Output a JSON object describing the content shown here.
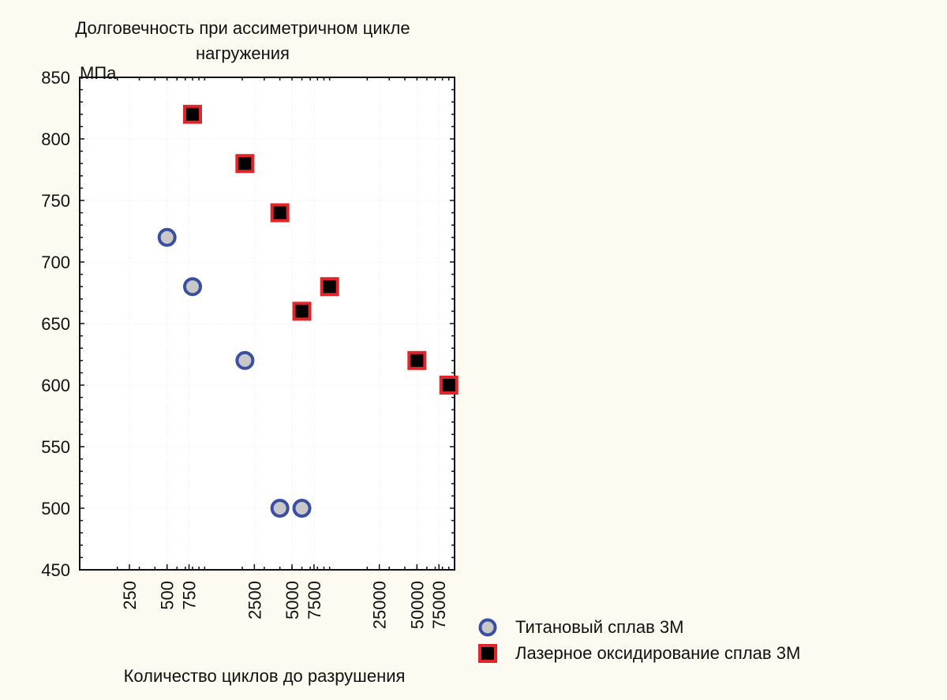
{
  "chart_data": {
    "type": "scatter",
    "title": "Долговечность при  ассиметричном цикле нагружения",
    "title_lines": [
      "Долговечность при  ассиметричном цикле",
      "нагружения"
    ],
    "xlabel": "Количество циклов до разрушения",
    "ylabel": "МПа",
    "xscale": "log",
    "xlim": [
      100,
      100000
    ],
    "ylim": [
      450,
      850
    ],
    "xticks": [
      250,
      500,
      750,
      2500,
      5000,
      7500,
      25000,
      50000,
      75000
    ],
    "yticks": [
      450,
      500,
      550,
      600,
      650,
      700,
      750,
      800,
      850
    ],
    "grid": true,
    "legend_position": "bottom-right outside",
    "series": [
      {
        "name": "Титановый сплав 3М",
        "marker": "circle",
        "fill": "#c8c8c8",
        "stroke": "#3a4fa0",
        "x": [
          500,
          800,
          2100,
          4000,
          6000
        ],
        "y": [
          720,
          680,
          620,
          500,
          500
        ]
      },
      {
        "name": "Лазерное оксидирование сплав 3М",
        "marker": "square",
        "fill": "#000000",
        "stroke": "#e0262a",
        "x": [
          800,
          2100,
          4000,
          10000,
          6000,
          50000,
          90000
        ],
        "y": [
          820,
          780,
          740,
          680,
          660,
          620,
          600
        ]
      }
    ]
  }
}
